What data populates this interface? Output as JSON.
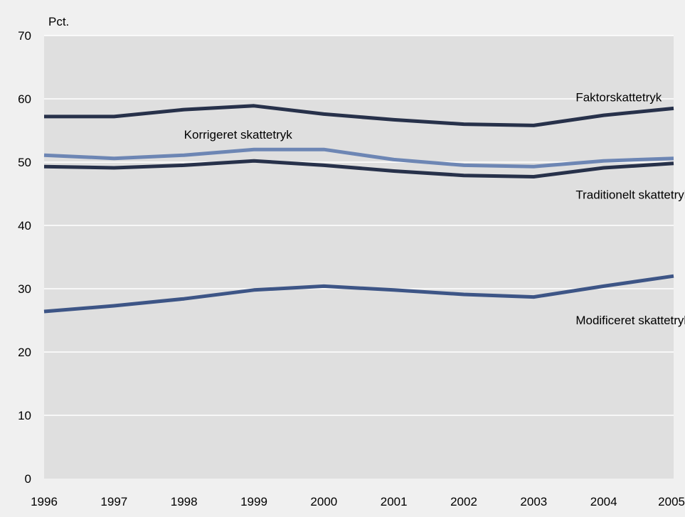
{
  "chart_data": {
    "type": "line",
    "ylabel": "Pct.",
    "xlabel": "",
    "ylim": [
      0,
      70
    ],
    "yticks": [
      0,
      10,
      20,
      30,
      40,
      50,
      60,
      70
    ],
    "x": [
      "1996",
      "1997",
      "1998",
      "1999",
      "2000",
      "2001",
      "2002",
      "2003",
      "2004",
      "2005"
    ],
    "grid": "horizontal",
    "legend": "none",
    "series": [
      {
        "name": "Faktorskattetryk",
        "color": "#27314a",
        "values": [
          57.2,
          57.2,
          58.3,
          58.9,
          57.6,
          56.7,
          56.0,
          55.8,
          57.4,
          58.5
        ]
      },
      {
        "name": "Korrigeret skattetryk",
        "color": "#6d86b4",
        "values": [
          51.1,
          50.6,
          51.1,
          52.0,
          52.0,
          50.4,
          49.5,
          49.3,
          50.2,
          50.6
        ]
      },
      {
        "name": "Traditionelt skattetryk",
        "color": "#27314a",
        "values": [
          49.3,
          49.1,
          49.5,
          50.2,
          49.5,
          48.6,
          47.9,
          47.7,
          49.1,
          49.8
        ]
      },
      {
        "name": "Modificeret skattetryk",
        "color": "#3d5586",
        "values": [
          26.4,
          27.3,
          28.4,
          29.8,
          30.4,
          29.8,
          29.1,
          28.7,
          30.4,
          32.0
        ]
      }
    ],
    "colors": {
      "plot_background": "#dfdfdf",
      "page_background": "#f0f0f0",
      "gridline": "#ffffff"
    }
  }
}
